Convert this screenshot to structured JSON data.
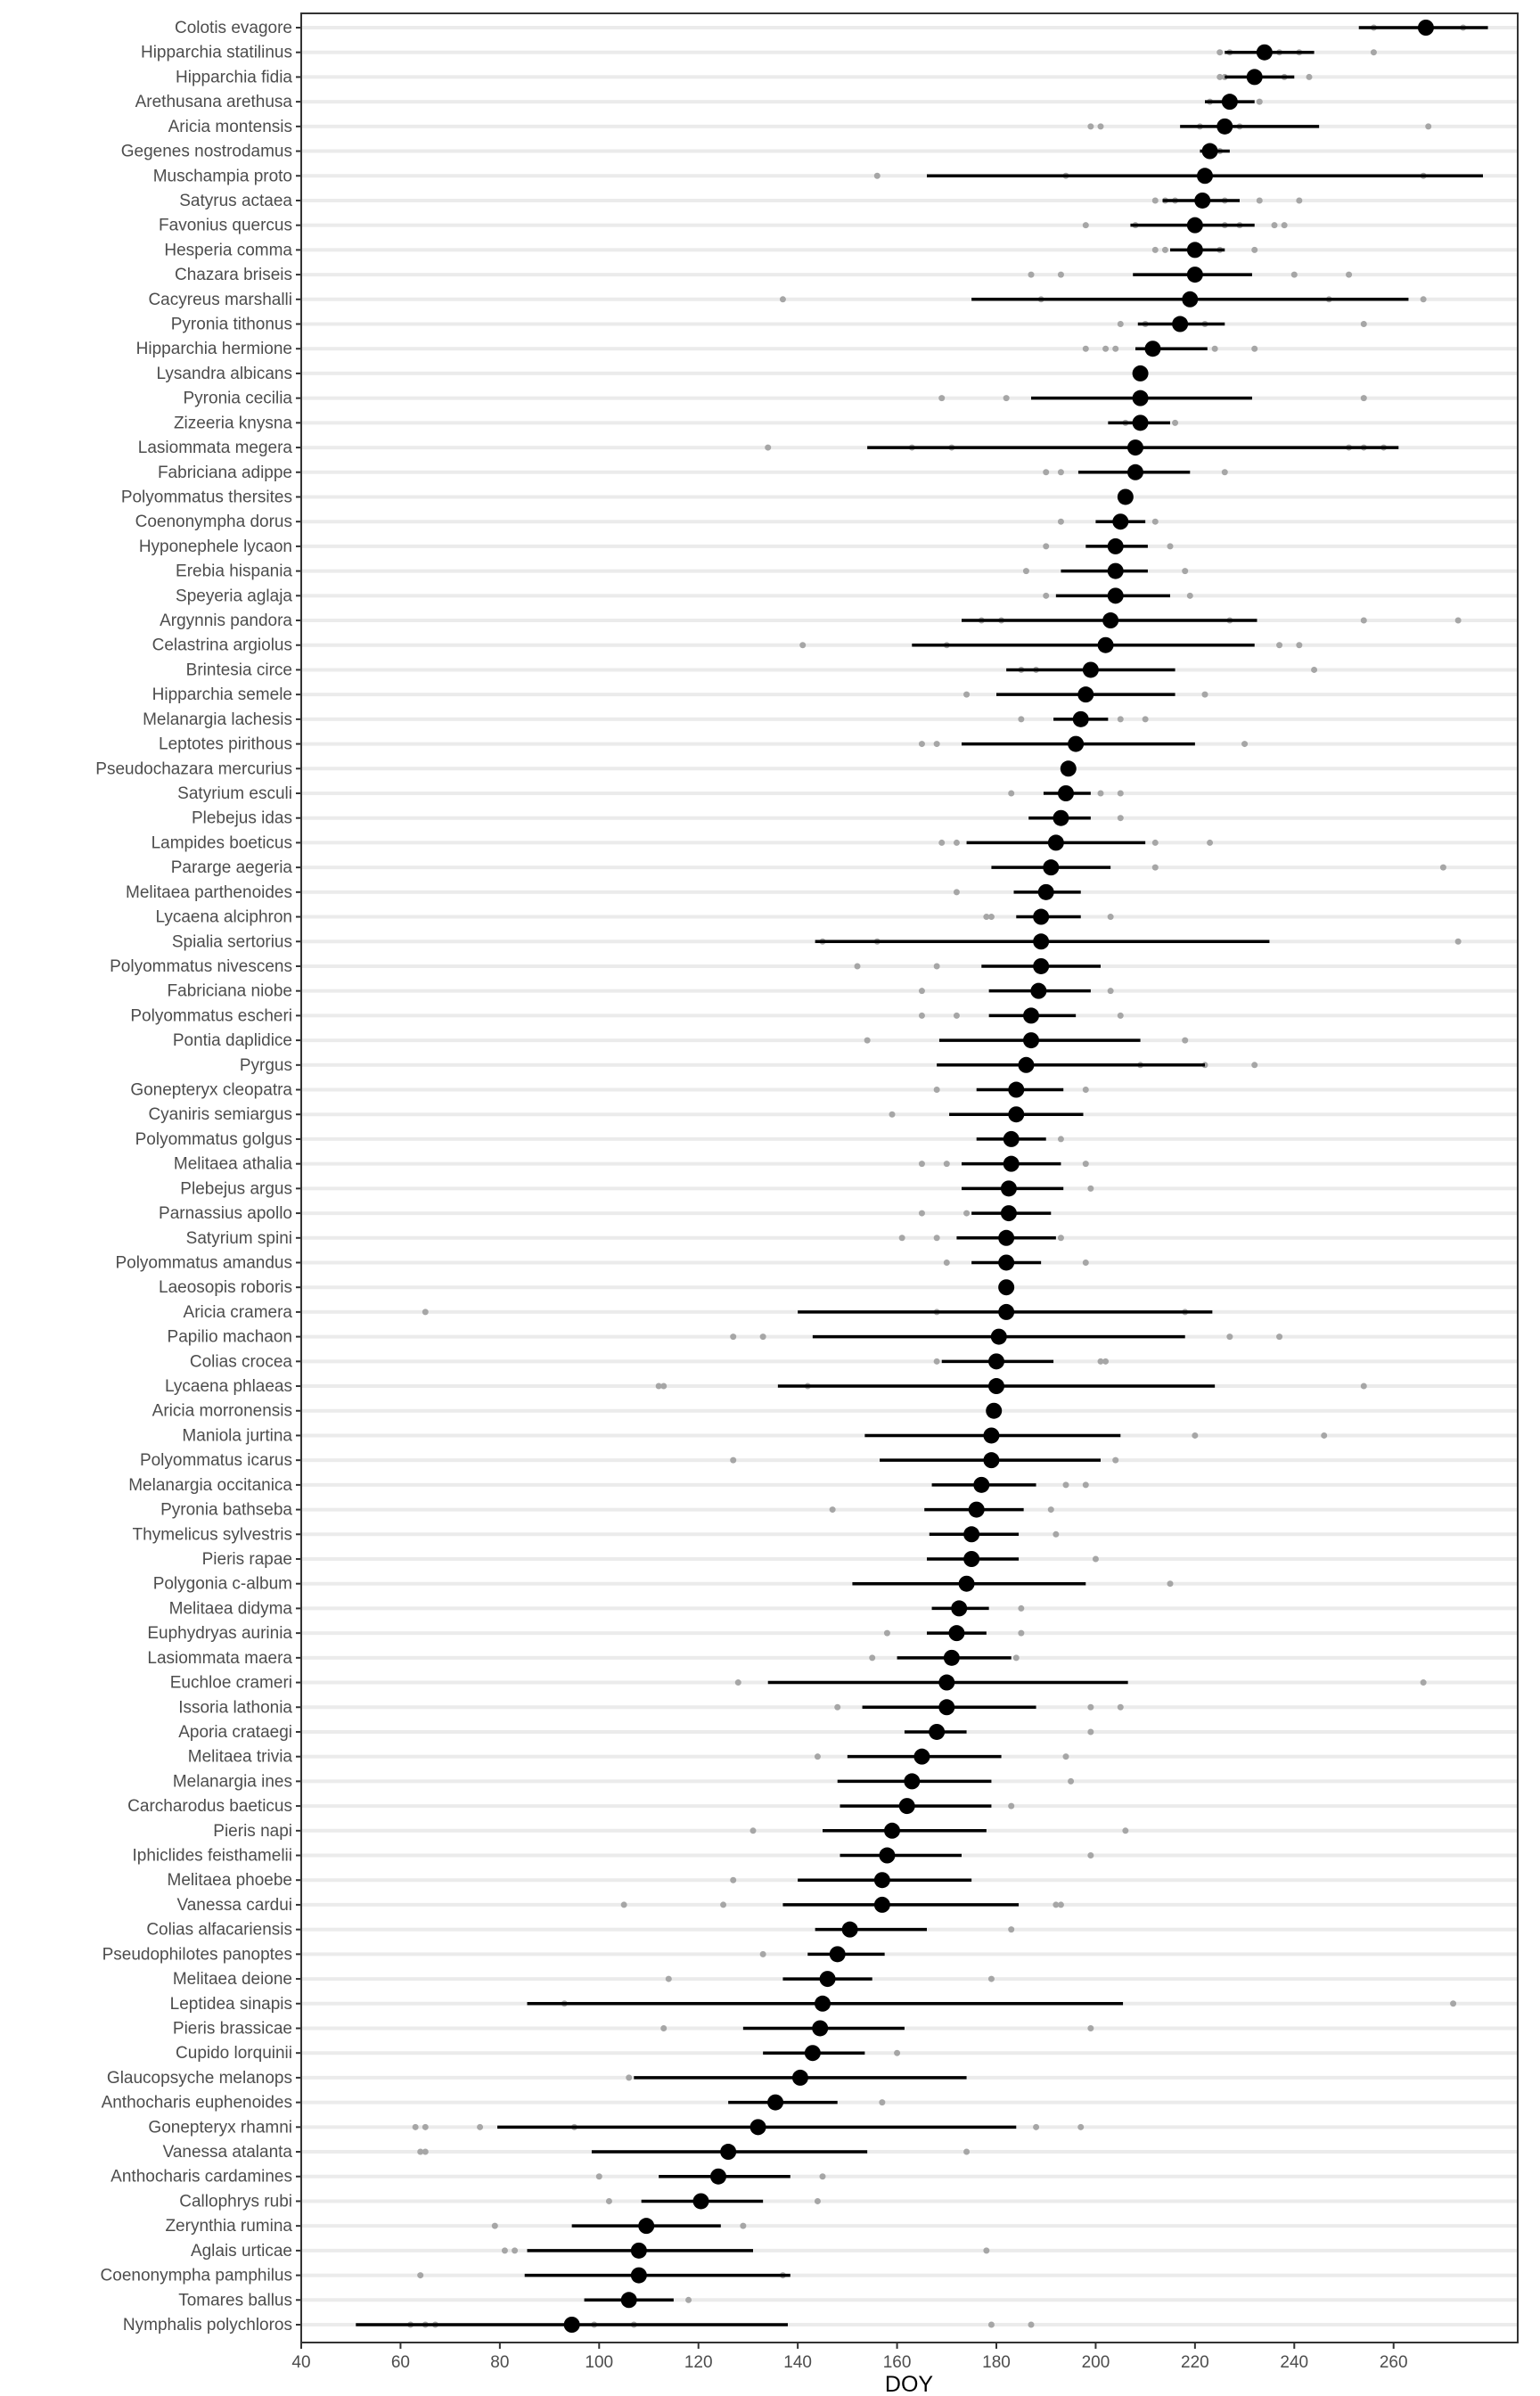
{
  "chart_data": {
    "type": "scatter",
    "subtype": "point-range (mean with interval) plus raw observations",
    "title": "",
    "xlabel": "DOY",
    "ylabel": "",
    "xlim": [
      40,
      285
    ],
    "xticks": [
      40,
      60,
      80,
      100,
      120,
      140,
      160,
      180,
      200,
      220,
      240,
      260
    ],
    "grid": "horizontal major lines",
    "colors": {
      "mean": "#000000",
      "interval": "#000000",
      "raw": "#a6a6a6",
      "grid": "#ebebeb",
      "frame": "#333333"
    },
    "species": [
      {
        "name": "Colotis evagore",
        "mean": 266.5,
        "lo": 253,
        "hi": 279,
        "points": [
          256,
          274
        ]
      },
      {
        "name": "Hipparchia statilinus",
        "mean": 234,
        "lo": 226,
        "hi": 244,
        "points": [
          225,
          227,
          237,
          241,
          256
        ]
      },
      {
        "name": "Hipparchia fidia",
        "mean": 232,
        "lo": 226,
        "hi": 240,
        "points": [
          225,
          226,
          238,
          243
        ]
      },
      {
        "name": "Arethusana arethusa",
        "mean": 227,
        "lo": 222,
        "hi": 232,
        "points": [
          223,
          233
        ]
      },
      {
        "name": "Aricia montensis",
        "mean": 226,
        "lo": 217,
        "hi": 245,
        "points": [
          199,
          201,
          221,
          229,
          267
        ]
      },
      {
        "name": "Gegenes nostrodamus",
        "mean": 223,
        "lo": 221,
        "hi": 227,
        "points": [
          222,
          225
        ]
      },
      {
        "name": "Muschampia proto",
        "mean": 222,
        "lo": 166,
        "hi": 278,
        "points": [
          156,
          194,
          266
        ]
      },
      {
        "name": "Satyrus actaea",
        "mean": 221.5,
        "lo": 213.5,
        "hi": 229,
        "points": [
          212,
          214,
          216,
          226,
          233,
          241
        ]
      },
      {
        "name": "Favonius quercus",
        "mean": 220,
        "lo": 207,
        "hi": 232,
        "points": [
          198,
          208,
          226,
          229,
          236,
          238
        ]
      },
      {
        "name": "Hesperia comma",
        "mean": 220,
        "lo": 215,
        "hi": 226,
        "points": [
          212,
          214,
          225,
          232
        ]
      },
      {
        "name": "Chazara briseis",
        "mean": 220,
        "lo": 207.5,
        "hi": 231.5,
        "points": [
          187,
          193,
          240,
          251
        ]
      },
      {
        "name": "Cacyreus marshalli",
        "mean": 219,
        "lo": 175,
        "hi": 263,
        "points": [
          137,
          189,
          247,
          266
        ]
      },
      {
        "name": "Pyronia tithonus",
        "mean": 217,
        "lo": 208.5,
        "hi": 226,
        "points": [
          205,
          210,
          222,
          254
        ]
      },
      {
        "name": "Hipparchia hermione",
        "mean": 211.5,
        "lo": 208,
        "hi": 222.5,
        "points": [
          198,
          202,
          204,
          224,
          232
        ]
      },
      {
        "name": "Lysandra albicans",
        "mean": 209,
        "lo": 209,
        "hi": 209,
        "points": []
      },
      {
        "name": "Pyronia cecilia",
        "mean": 209,
        "lo": 187,
        "hi": 231.5,
        "points": [
          169,
          182,
          254
        ]
      },
      {
        "name": "Zizeeria knysna",
        "mean": 209,
        "lo": 202.5,
        "hi": 215,
        "points": [
          206,
          216
        ]
      },
      {
        "name": "Lasiommata megera",
        "mean": 208,
        "lo": 154,
        "hi": 261,
        "points": [
          134,
          163,
          171,
          251,
          254,
          258
        ]
      },
      {
        "name": "Fabriciana adippe",
        "mean": 208,
        "lo": 196.5,
        "hi": 219,
        "points": [
          190,
          193,
          226
        ]
      },
      {
        "name": "Polyommatus thersites",
        "mean": 206,
        "lo": 206,
        "hi": 206,
        "points": []
      },
      {
        "name": "Coenonympha dorus",
        "mean": 205,
        "lo": 200,
        "hi": 210,
        "points": [
          193,
          212
        ]
      },
      {
        "name": "Hyponephele lycaon",
        "mean": 204,
        "lo": 198,
        "hi": 210.5,
        "points": [
          190,
          215
        ]
      },
      {
        "name": "Erebia hispania",
        "mean": 204,
        "lo": 193,
        "hi": 210.5,
        "points": [
          186,
          218
        ]
      },
      {
        "name": "Speyeria aglaja",
        "mean": 204,
        "lo": 192,
        "hi": 215,
        "points": [
          190,
          219
        ]
      },
      {
        "name": "Argynnis pandora",
        "mean": 203,
        "lo": 173,
        "hi": 232.5,
        "points": [
          177,
          181,
          227,
          254,
          273
        ]
      },
      {
        "name": "Celastrina argiolus",
        "mean": 202,
        "lo": 163,
        "hi": 232,
        "points": [
          141,
          170,
          237,
          241
        ]
      },
      {
        "name": "Brintesia circe",
        "mean": 199,
        "lo": 182,
        "hi": 216,
        "points": [
          185,
          188,
          244
        ]
      },
      {
        "name": "Hipparchia semele",
        "mean": 198,
        "lo": 180,
        "hi": 216,
        "points": [
          174,
          222
        ]
      },
      {
        "name": "Melanargia lachesis",
        "mean": 197,
        "lo": 191.5,
        "hi": 202.5,
        "points": [
          185,
          205,
          210
        ]
      },
      {
        "name": "Leptotes pirithous",
        "mean": 196,
        "lo": 173,
        "hi": 220,
        "points": [
          165,
          168,
          230
        ]
      },
      {
        "name": "Pseudochazara mercurius",
        "mean": 194.5,
        "lo": 194.5,
        "hi": 194.5,
        "points": []
      },
      {
        "name": "Satyrium esculi",
        "mean": 194,
        "lo": 189.5,
        "hi": 199,
        "points": [
          183,
          201,
          205
        ]
      },
      {
        "name": "Plebejus idas",
        "mean": 193,
        "lo": 186.5,
        "hi": 199,
        "points": [
          205
        ]
      },
      {
        "name": "Lampides boeticus",
        "mean": 192,
        "lo": 174,
        "hi": 210,
        "points": [
          169,
          172,
          212,
          223
        ]
      },
      {
        "name": "Pararge aegeria",
        "mean": 191,
        "lo": 179,
        "hi": 203,
        "points": [
          212,
          270
        ]
      },
      {
        "name": "Melitaea parthenoides",
        "mean": 190,
        "lo": 183.5,
        "hi": 197,
        "points": [
          172
        ]
      },
      {
        "name": "Lycaena alciphron",
        "mean": 189,
        "lo": 184,
        "hi": 197,
        "points": [
          178,
          179,
          203
        ]
      },
      {
        "name": "Spialia sertorius",
        "mean": 189,
        "lo": 143.5,
        "hi": 235,
        "points": [
          145,
          156,
          273
        ]
      },
      {
        "name": "Polyommatus nivescens",
        "mean": 189,
        "lo": 177,
        "hi": 201,
        "points": [
          152,
          168
        ]
      },
      {
        "name": "Fabriciana niobe",
        "mean": 188.5,
        "lo": 178.5,
        "hi": 199,
        "points": [
          165,
          203
        ]
      },
      {
        "name": "Polyommatus escheri",
        "mean": 187,
        "lo": 178.5,
        "hi": 196,
        "points": [
          165,
          172,
          205
        ]
      },
      {
        "name": "Pontia daplidice",
        "mean": 187,
        "lo": 168.5,
        "hi": 209,
        "points": [
          154,
          218
        ]
      },
      {
        "name": "Pyrgus",
        "mean": 186,
        "lo": 168,
        "hi": 222,
        "points": [
          209,
          222,
          232
        ]
      },
      {
        "name": "Gonepteryx cleopatra",
        "mean": 184,
        "lo": 176,
        "hi": 193.5,
        "points": [
          168,
          198
        ]
      },
      {
        "name": "Cyaniris semiargus",
        "mean": 184,
        "lo": 170.5,
        "hi": 197.5,
        "points": [
          159
        ]
      },
      {
        "name": "Polyommatus golgus",
        "mean": 183,
        "lo": 176,
        "hi": 190,
        "points": [
          193
        ]
      },
      {
        "name": "Melitaea athalia",
        "mean": 183,
        "lo": 173,
        "hi": 193,
        "points": [
          165,
          170,
          198
        ]
      },
      {
        "name": "Plebejus argus",
        "mean": 182.5,
        "lo": 173,
        "hi": 193.5,
        "points": [
          199
        ]
      },
      {
        "name": "Parnassius apollo",
        "mean": 182.5,
        "lo": 175,
        "hi": 191,
        "points": [
          165,
          174
        ]
      },
      {
        "name": "Satyrium spini",
        "mean": 182,
        "lo": 172,
        "hi": 192,
        "points": [
          161,
          168,
          193
        ]
      },
      {
        "name": "Polyommatus amandus",
        "mean": 182,
        "lo": 175,
        "hi": 189,
        "points": [
          170,
          198
        ]
      },
      {
        "name": "Laeosopis roboris",
        "mean": 182,
        "lo": 182,
        "hi": 182,
        "points": []
      },
      {
        "name": "Aricia cramera",
        "mean": 182,
        "lo": 140,
        "hi": 223.5,
        "points": [
          65,
          168,
          218
        ]
      },
      {
        "name": "Papilio machaon",
        "mean": 180.5,
        "lo": 143,
        "hi": 218,
        "points": [
          127,
          133,
          227,
          237
        ]
      },
      {
        "name": "Colias crocea",
        "mean": 180,
        "lo": 169,
        "hi": 191.5,
        "points": [
          168,
          201,
          202
        ]
      },
      {
        "name": "Lycaena phlaeas",
        "mean": 180,
        "lo": 136,
        "hi": 224,
        "points": [
          112,
          113,
          142,
          254
        ]
      },
      {
        "name": "Aricia morronensis",
        "mean": 179.5,
        "lo": 179.5,
        "hi": 179.5,
        "points": []
      },
      {
        "name": "Maniola jurtina",
        "mean": 179,
        "lo": 153.5,
        "hi": 205,
        "points": [
          220,
          246
        ]
      },
      {
        "name": "Polyommatus icarus",
        "mean": 179,
        "lo": 156.5,
        "hi": 201,
        "points": [
          127,
          204
        ]
      },
      {
        "name": "Melanargia occitanica",
        "mean": 177,
        "lo": 167,
        "hi": 188,
        "points": [
          194,
          198
        ]
      },
      {
        "name": "Pyronia bathseba",
        "mean": 176,
        "lo": 165.5,
        "hi": 185.5,
        "points": [
          147,
          191
        ]
      },
      {
        "name": "Thymelicus sylvestris",
        "mean": 175,
        "lo": 166.5,
        "hi": 184.5,
        "points": [
          192
        ]
      },
      {
        "name": "Pieris rapae",
        "mean": 175,
        "lo": 166,
        "hi": 184.5,
        "points": [
          200
        ]
      },
      {
        "name": "Polygonia c-album",
        "mean": 174,
        "lo": 151,
        "hi": 198,
        "points": [
          215
        ]
      },
      {
        "name": "Melitaea didyma",
        "mean": 172.5,
        "lo": 167,
        "hi": 178.5,
        "points": [
          185
        ]
      },
      {
        "name": "Euphydryas aurinia",
        "mean": 172,
        "lo": 166,
        "hi": 178,
        "points": [
          158,
          185
        ]
      },
      {
        "name": "Lasiommata maera",
        "mean": 171,
        "lo": 160,
        "hi": 183,
        "points": [
          155,
          184
        ]
      },
      {
        "name": "Euchloe crameri",
        "mean": 170,
        "lo": 134,
        "hi": 206.5,
        "points": [
          128,
          266
        ]
      },
      {
        "name": "Issoria lathonia",
        "mean": 170,
        "lo": 153,
        "hi": 188,
        "points": [
          148,
          199,
          205
        ]
      },
      {
        "name": "Aporia crataegi",
        "mean": 168,
        "lo": 161.5,
        "hi": 174,
        "points": [
          199
        ]
      },
      {
        "name": "Melitaea trivia",
        "mean": 165,
        "lo": 150,
        "hi": 181,
        "points": [
          144,
          194
        ]
      },
      {
        "name": "Melanargia ines",
        "mean": 163,
        "lo": 148,
        "hi": 179,
        "points": [
          195
        ]
      },
      {
        "name": "Carcharodus baeticus",
        "mean": 162,
        "lo": 148.5,
        "hi": 179,
        "points": [
          183
        ]
      },
      {
        "name": "Pieris napi",
        "mean": 159,
        "lo": 145,
        "hi": 178,
        "points": [
          131,
          206
        ]
      },
      {
        "name": "Iphiclides feisthamelii",
        "mean": 158,
        "lo": 148.5,
        "hi": 173,
        "points": [
          199
        ]
      },
      {
        "name": "Melitaea phoebe",
        "mean": 157,
        "lo": 140,
        "hi": 175,
        "points": [
          127
        ]
      },
      {
        "name": "Vanessa cardui",
        "mean": 157,
        "lo": 137,
        "hi": 184.5,
        "points": [
          105,
          125,
          192,
          193
        ]
      },
      {
        "name": "Colias alfacariensis",
        "mean": 150.5,
        "lo": 143.5,
        "hi": 166,
        "points": [
          183
        ]
      },
      {
        "name": "Pseudophilotes panoptes",
        "mean": 148,
        "lo": 142,
        "hi": 157.5,
        "points": [
          133
        ]
      },
      {
        "name": "Melitaea deione",
        "mean": 146,
        "lo": 137,
        "hi": 155,
        "points": [
          114,
          179
        ]
      },
      {
        "name": "Leptidea sinapis",
        "mean": 145,
        "lo": 85.5,
        "hi": 205.5,
        "points": [
          93,
          272
        ]
      },
      {
        "name": "Pieris brassicae",
        "mean": 144.5,
        "lo": 129,
        "hi": 161.5,
        "points": [
          113,
          199
        ]
      },
      {
        "name": "Cupido lorquinii",
        "mean": 143,
        "lo": 133,
        "hi": 153.5,
        "points": [
          160
        ]
      },
      {
        "name": "Glaucopsyche melanops",
        "mean": 140.5,
        "lo": 107,
        "hi": 174,
        "points": [
          106
        ]
      },
      {
        "name": "Anthocharis euphenoides",
        "mean": 135.5,
        "lo": 126,
        "hi": 148,
        "points": [
          157
        ]
      },
      {
        "name": "Gonepteryx rhamni",
        "mean": 132,
        "lo": 79.5,
        "hi": 184,
        "points": [
          63,
          65,
          76,
          95,
          188,
          197
        ]
      },
      {
        "name": "Vanessa atalanta",
        "mean": 126,
        "lo": 98.5,
        "hi": 154,
        "points": [
          64,
          65,
          174
        ]
      },
      {
        "name": "Anthocharis cardamines",
        "mean": 124,
        "lo": 112,
        "hi": 138.5,
        "points": [
          100,
          145
        ]
      },
      {
        "name": "Callophrys rubi",
        "mean": 120.5,
        "lo": 108.5,
        "hi": 133,
        "points": [
          102,
          144
        ]
      },
      {
        "name": "Zerynthia rumina",
        "mean": 109.5,
        "lo": 94.5,
        "hi": 124.5,
        "points": [
          79,
          129
        ]
      },
      {
        "name": "Aglais urticae",
        "mean": 108,
        "lo": 85.5,
        "hi": 131,
        "points": [
          81,
          83,
          178
        ]
      },
      {
        "name": "Coenonympha pamphilus",
        "mean": 108,
        "lo": 85,
        "hi": 138.5,
        "points": [
          64,
          137
        ]
      },
      {
        "name": "Tomares ballus",
        "mean": 106,
        "lo": 97,
        "hi": 115,
        "points": [
          118
        ]
      },
      {
        "name": "Nymphalis polychloros",
        "mean": 94.5,
        "lo": 51,
        "hi": 138,
        "points": [
          62,
          65,
          67,
          99,
          107,
          179,
          187
        ]
      }
    ]
  }
}
